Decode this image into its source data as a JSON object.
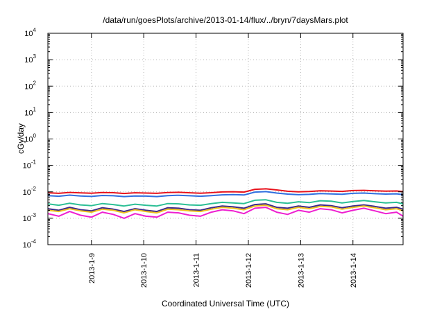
{
  "chart_data": {
    "type": "line",
    "title": "/data/run/goesPlots/archive/2013-01-14/flux/../bryn/7daysMars.plot",
    "xlabel": "Coordinated Universal Time (UTC)",
    "ylabel": "cGy/day",
    "yscale": "log",
    "ylim": [
      0.0001,
      10000
    ],
    "xlim": [
      "2013-01-08T04:00",
      "2013-01-14T23:00"
    ],
    "grid": true,
    "y_ticks": [
      {
        "value": 0.0001,
        "base": "10",
        "exp": "-4"
      },
      {
        "value": 0.001,
        "base": "10",
        "exp": "-3"
      },
      {
        "value": 0.01,
        "base": "10",
        "exp": "-2"
      },
      {
        "value": 0.1,
        "base": "10",
        "exp": "-1"
      },
      {
        "value": 1,
        "base": "10",
        "exp": "0"
      },
      {
        "value": 10,
        "base": "10",
        "exp": "1"
      },
      {
        "value": 100,
        "base": "10",
        "exp": "2"
      },
      {
        "value": 1000,
        "base": "10",
        "exp": "3"
      },
      {
        "value": 10000,
        "base": "10",
        "exp": "4"
      }
    ],
    "x_ticks": [
      {
        "value": "2013-01-09",
        "label": "2013-1-9"
      },
      {
        "value": "2013-01-10",
        "label": "2013-1-10"
      },
      {
        "value": "2013-01-11",
        "label": "2013-1-11"
      },
      {
        "value": "2013-01-12",
        "label": "2013-1-12"
      },
      {
        "value": "2013-01-13",
        "label": "2013-1-13"
      },
      {
        "value": "2013-01-14",
        "label": "2013-1-14"
      }
    ],
    "x": [
      "2013-01-08T04:00",
      "2013-01-08T09:00",
      "2013-01-08T14:00",
      "2013-01-08T19:00",
      "2013-01-09T00:00",
      "2013-01-09T05:00",
      "2013-01-09T10:00",
      "2013-01-09T15:00",
      "2013-01-09T20:00",
      "2013-01-10T01:00",
      "2013-01-10T06:00",
      "2013-01-10T11:00",
      "2013-01-10T16:00",
      "2013-01-10T21:00",
      "2013-01-11T02:00",
      "2013-01-11T07:00",
      "2013-01-11T12:00",
      "2013-01-11T17:00",
      "2013-01-11T22:00",
      "2013-01-12T03:00",
      "2013-01-12T08:00",
      "2013-01-12T13:00",
      "2013-01-12T18:00",
      "2013-01-12T23:00",
      "2013-01-13T04:00",
      "2013-01-13T09:00",
      "2013-01-13T14:00",
      "2013-01-13T19:00",
      "2013-01-14T00:00",
      "2013-01-14T05:00",
      "2013-01-14T10:00",
      "2013-01-14T15:00",
      "2013-01-14T20:00",
      "2013-01-14T23:00"
    ],
    "series": [
      {
        "color": "#e8121c",
        "values": [
          0.0092,
          0.0088,
          0.0095,
          0.0091,
          0.0089,
          0.0094,
          0.0093,
          0.0087,
          0.0092,
          0.009,
          0.0088,
          0.0094,
          0.0096,
          0.0092,
          0.0089,
          0.0093,
          0.0099,
          0.0101,
          0.0098,
          0.0125,
          0.013,
          0.0118,
          0.0105,
          0.01,
          0.0103,
          0.011,
          0.0107,
          0.0104,
          0.0112,
          0.0114,
          0.0109,
          0.0106,
          0.0108,
          0.0102
        ]
      },
      {
        "color": "#2f6fe0",
        "values": [
          0.0072,
          0.0068,
          0.0075,
          0.007,
          0.0067,
          0.0073,
          0.0071,
          0.0066,
          0.007,
          0.0069,
          0.0066,
          0.0072,
          0.0074,
          0.0071,
          0.0068,
          0.0072,
          0.0077,
          0.0079,
          0.0076,
          0.0098,
          0.0102,
          0.009,
          0.0082,
          0.0078,
          0.008,
          0.0086,
          0.0083,
          0.0081,
          0.0088,
          0.009,
          0.0085,
          0.0082,
          0.0084,
          0.0078
        ]
      },
      {
        "color": "#2bbf95",
        "values": [
          0.0035,
          0.0031,
          0.0037,
          0.0032,
          0.003,
          0.0036,
          0.0033,
          0.0029,
          0.0034,
          0.0031,
          0.0029,
          0.0036,
          0.0035,
          0.0032,
          0.0031,
          0.0036,
          0.004,
          0.0038,
          0.0036,
          0.0048,
          0.005,
          0.004,
          0.0037,
          0.0042,
          0.0039,
          0.0046,
          0.0044,
          0.0038,
          0.0043,
          0.0047,
          0.0042,
          0.0038,
          0.004,
          0.0035
        ]
      },
      {
        "color": "#3c2a8a",
        "values": [
          0.0023,
          0.002,
          0.0026,
          0.0021,
          0.0019,
          0.0025,
          0.0022,
          0.0018,
          0.0023,
          0.002,
          0.0018,
          0.0025,
          0.0024,
          0.0021,
          0.002,
          0.0025,
          0.0029,
          0.0027,
          0.0024,
          0.0033,
          0.0035,
          0.0026,
          0.0024,
          0.0029,
          0.0026,
          0.0032,
          0.003,
          0.0025,
          0.0029,
          0.0032,
          0.0028,
          0.0024,
          0.0026,
          0.0022
        ]
      },
      {
        "color": "#f0c020",
        "values": [
          0.002,
          0.0018,
          0.0023,
          0.0019,
          0.0017,
          0.0022,
          0.002,
          0.0016,
          0.0021,
          0.0018,
          0.0016,
          0.0022,
          0.0021,
          0.0019,
          0.0018,
          0.0022,
          0.0026,
          0.0024,
          0.0021,
          0.0029,
          0.0031,
          0.0023,
          0.0021,
          0.0026,
          0.0023,
          0.0028,
          0.0027,
          0.0022,
          0.0026,
          0.0029,
          0.0025,
          0.0021,
          0.0023,
          0.0019
        ]
      },
      {
        "color": "#ee1fd0",
        "values": [
          0.0015,
          0.0012,
          0.0018,
          0.0013,
          0.0011,
          0.0017,
          0.0014,
          0.001,
          0.0015,
          0.0012,
          0.0011,
          0.0017,
          0.0016,
          0.0013,
          0.0012,
          0.0017,
          0.0021,
          0.0019,
          0.0015,
          0.0024,
          0.0026,
          0.0017,
          0.0014,
          0.002,
          0.0017,
          0.0023,
          0.0021,
          0.0016,
          0.002,
          0.0024,
          0.0019,
          0.0015,
          0.0017,
          0.0012
        ]
      }
    ]
  }
}
